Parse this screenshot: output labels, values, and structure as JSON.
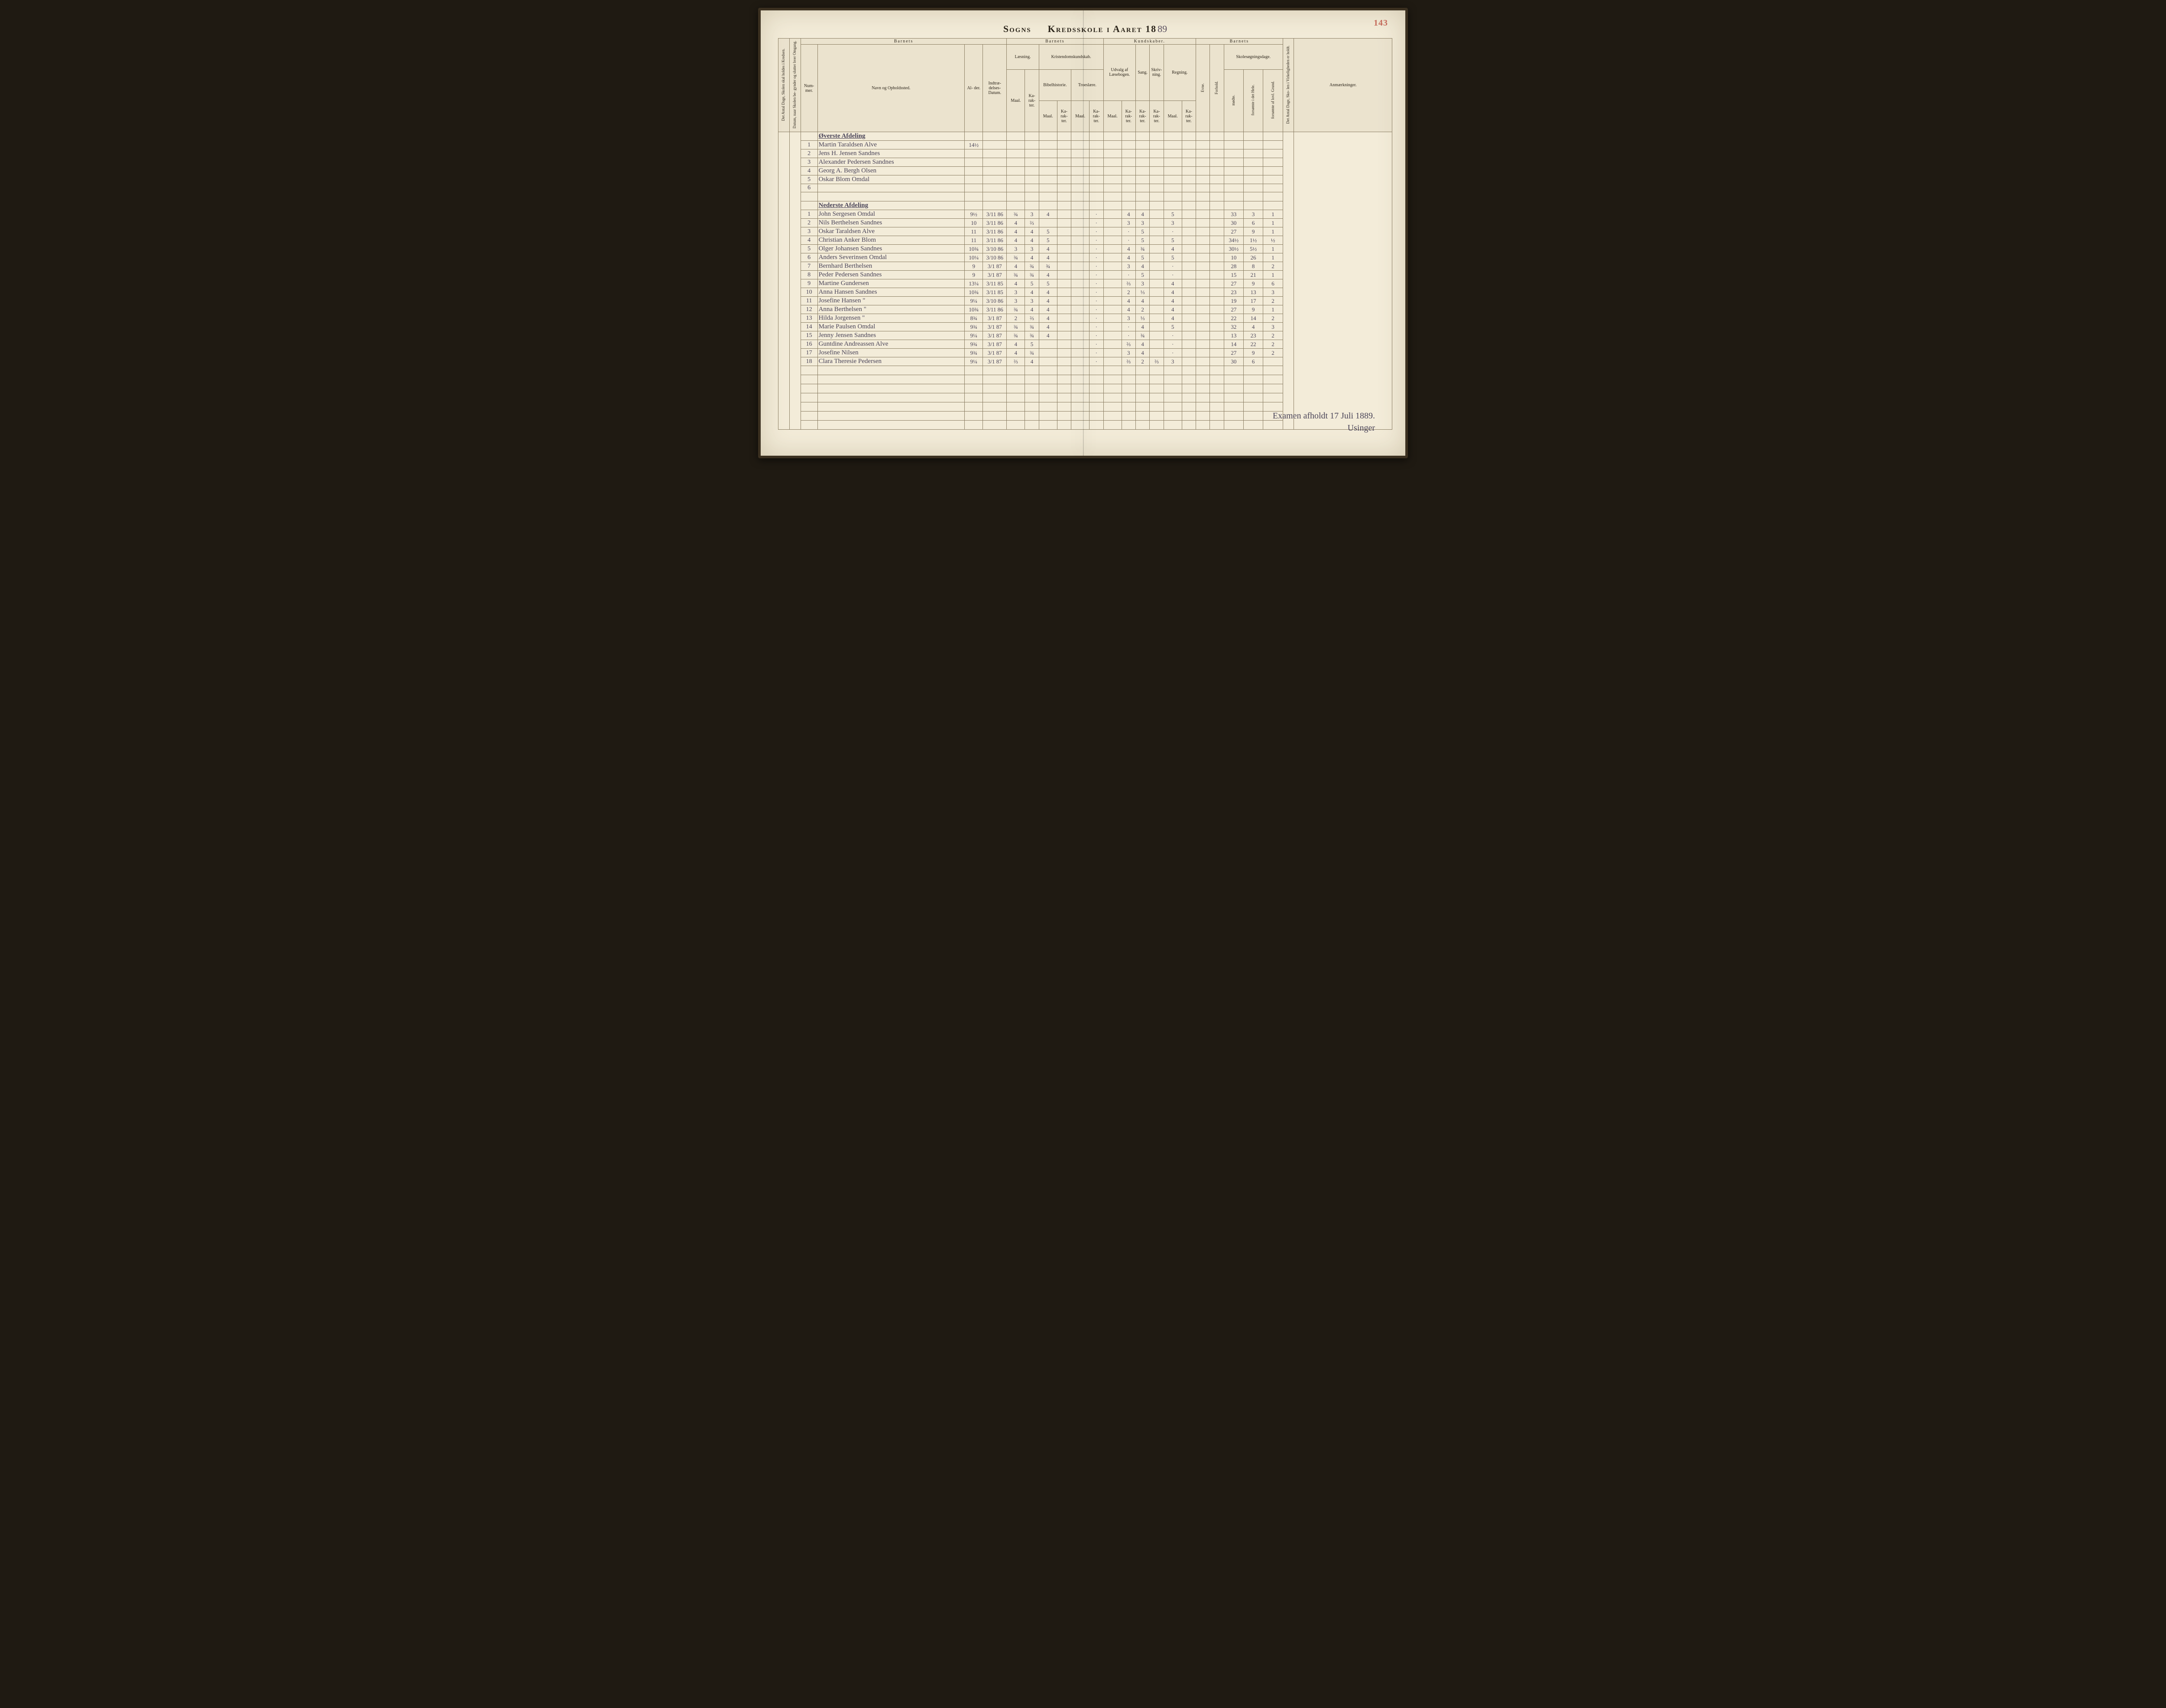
{
  "page": {
    "page_number": "143",
    "title_left": "Sogns",
    "title_right": "Kredsskole i Aaret 18",
    "year_suffix": "89"
  },
  "headers": {
    "barnets": "Barnets",
    "kundskaber": "Kundskaber.",
    "nummer": "Num-\nmer.",
    "navn": "Navn og Opholdssted.",
    "alder": "Al-\nder.",
    "indtr": "Indtræ-\ndelses-\nDatum.",
    "laesning": "Læsning.",
    "kristen": "Kristendomskundskab.",
    "bibel": "Bibelhistorie.",
    "troes": "Troeslære.",
    "udvalg": "Udvalg af\nLæsebogen.",
    "sang": "Sang.",
    "skriv": "Skriv-\nning.",
    "regning": "Regning.",
    "maal": "Maal.",
    "kar": "Ka-\nrak-\nter.",
    "evne": "Evne.",
    "forhold": "Forhold.",
    "skoledage": "Skolesøgningsdage.",
    "modte": "mødte.",
    "fors_hele": "forsømte i\ndet Hele.",
    "fors_lov": "forsømte af\nlovl. Grund.",
    "anm": "Anmærkninger.",
    "rot_a": "Det Antal Dage, Skolen\nskal holdes i Kredsen.",
    "rot_b": "Datum, naar Skolen be-\ngynder og slutter hver\nOmgang.",
    "rot_c": "Det Antal Dage, Sko-\nlen i Virkeligheden\ner holdt."
  },
  "sections": {
    "upper": "Øverste Afdeling",
    "lower": "Nederste Afdeling"
  },
  "upper_rows": [
    {
      "n": "1",
      "name": "Martin Taraldsen Alve",
      "age": "14½"
    },
    {
      "n": "2",
      "name": "Jens H. Jensen Sandnes"
    },
    {
      "n": "3",
      "name": "Alexander Pedersen Sandnes"
    },
    {
      "n": "4",
      "name": "Georg A. Bergh Olsen"
    },
    {
      "n": "5",
      "name": "Oskar Blom Omdal"
    },
    {
      "n": "6",
      "name": ""
    }
  ],
  "lower_rows": [
    {
      "n": "1",
      "name": "John Sergesen Omdal",
      "age": "9½",
      "date": "3/11 86",
      "l_m": "¾",
      "l_k": "3",
      "b_m": "4",
      "t_k": "·",
      "u_k": "4",
      "sa": "4",
      "sk": "",
      "r_m": "5",
      "m": "33",
      "fh": "3",
      "fl": "1"
    },
    {
      "n": "2",
      "name": "Nils Berthelsen Sandnes",
      "age": "10",
      "date": "3/11 86",
      "l_m": "4",
      "l_k": "⅔",
      "b_m": "",
      "t_k": "·",
      "u_k": "3",
      "sa": "3",
      "sk": "",
      "r_m": "3",
      "m": "30",
      "fh": "6",
      "fl": "1"
    },
    {
      "n": "3",
      "name": "Oskar Taraldsen Alve",
      "age": "11",
      "date": "3/11 86",
      "l_m": "4",
      "l_k": "4",
      "b_m": "5",
      "t_k": "·",
      "u_k": "·",
      "sa": "5",
      "sk": "",
      "r_m": "·",
      "m": "27",
      "fh": "9",
      "fl": "1"
    },
    {
      "n": "4",
      "name": "Christian Anker Blom",
      "age": "11",
      "date": "3/11 86",
      "l_m": "4",
      "l_k": "4",
      "b_m": "5",
      "t_k": "·",
      "u_k": "·",
      "sa": "5",
      "sk": "",
      "r_m": "5",
      "m": "34½",
      "fh": "1½",
      "fl": "½"
    },
    {
      "n": "5",
      "name": "Olger Johansen Sandnes",
      "age": "10¾",
      "date": "3/10 86",
      "l_m": "3",
      "l_k": "3",
      "b_m": "4",
      "t_k": "·",
      "u_k": "4",
      "sa": "¾",
      "sk": "",
      "r_m": "4",
      "m": "30½",
      "fh": "5½",
      "fl": "1"
    },
    {
      "n": "6",
      "name": "Anders Severinsen Omdal",
      "age": "10¼",
      "date": "3/10 86",
      "l_m": "¾",
      "l_k": "4",
      "b_m": "4",
      "t_k": "·",
      "u_k": "4",
      "sa": "5",
      "sk": "",
      "r_m": "5",
      "m": "10",
      "fh": "26",
      "fl": "1"
    },
    {
      "n": "7",
      "name": "Bernhard Berthelsen",
      "age": "9",
      "date": "3/1 87",
      "l_m": "4",
      "l_k": "¾",
      "b_m": "¾",
      "t_k": "·",
      "u_k": "3",
      "sa": "4",
      "sk": "",
      "r_m": "·",
      "m": "28",
      "fh": "8",
      "fl": "2"
    },
    {
      "n": "8",
      "name": "Peder Pedersen Sandnes",
      "age": "9",
      "date": "3/1 87",
      "l_m": "¾",
      "l_k": "¾",
      "b_m": "4",
      "t_k": "·",
      "u_k": "·",
      "sa": "5",
      "sk": "",
      "r_m": "·",
      "m": "15",
      "fh": "21",
      "fl": "1"
    },
    {
      "n": "9",
      "name": "Martine Gundersen",
      "age": "13¼",
      "date": "3/11 85",
      "l_m": "4",
      "l_k": "5",
      "b_m": "5",
      "t_k": "·",
      "u_k": "⅔",
      "sa": "3",
      "sk": "",
      "r_m": "4",
      "m": "27",
      "fh": "9",
      "fl": "6"
    },
    {
      "n": "10",
      "name": "Anna Hansen Sandnes",
      "age": "10¾",
      "date": "3/11 85",
      "l_m": "3",
      "l_k": "4",
      "b_m": "4",
      "t_k": "·",
      "u_k": "2",
      "sa": "⅓",
      "sk": "",
      "r_m": "4",
      "m": "23",
      "fh": "13",
      "fl": "3"
    },
    {
      "n": "11",
      "name": "Josefine Hansen     \"",
      "age": "9¼",
      "date": "3/10 86",
      "l_m": "3",
      "l_k": "3",
      "b_m": "4",
      "t_k": "·",
      "u_k": "4",
      "sa": "4",
      "sk": "",
      "r_m": "4",
      "m": "19",
      "fh": "17",
      "fl": "2"
    },
    {
      "n": "12",
      "name": "Anna Berthelsen     \"",
      "age": "10¾",
      "date": "3/11 86",
      "l_m": "¾",
      "l_k": "4",
      "b_m": "4",
      "t_k": "·",
      "u_k": "4",
      "sa": "2",
      "sk": "",
      "r_m": "4",
      "m": "27",
      "fh": "9",
      "fl": "1"
    },
    {
      "n": "13",
      "name": "Hilda Jorgensen     \"",
      "age": "8¾",
      "date": "3/1 87",
      "l_m": "2",
      "l_k": "⅔",
      "b_m": "4",
      "t_k": "·",
      "u_k": "3",
      "sa": "⅓",
      "sk": "",
      "r_m": "4",
      "m": "22",
      "fh": "14",
      "fl": "2"
    },
    {
      "n": "14",
      "name": "Marie Paulsen Omdal",
      "age": "9¾",
      "date": "3/1 87",
      "l_m": "¾",
      "l_k": "¾",
      "b_m": "4",
      "t_k": "·",
      "u_k": "·",
      "sa": "4",
      "sk": "",
      "r_m": "5",
      "m": "32",
      "fh": "4",
      "fl": "3"
    },
    {
      "n": "15",
      "name": "Jenny Jensen Sandnes",
      "age": "9¼",
      "date": "3/1 87",
      "l_m": "¾",
      "l_k": "¾",
      "b_m": "4",
      "t_k": "·",
      "u_k": "·",
      "sa": "¾",
      "sk": "",
      "r_m": "·",
      "m": "13",
      "fh": "23",
      "fl": "2"
    },
    {
      "n": "16",
      "name": "Guntdine Andreassen Alve",
      "age": "9¾",
      "date": "3/1 87",
      "l_m": "4",
      "l_k": "5",
      "b_m": "",
      "t_k": "·",
      "u_k": "⅔",
      "sa": "4",
      "sk": "",
      "r_m": "·",
      "m": "14",
      "fh": "22",
      "fl": "2"
    },
    {
      "n": "17",
      "name": "Josefine Nilsen",
      "age": "9¾",
      "date": "3/1 87",
      "l_m": "4",
      "l_k": "¾",
      "b_m": "",
      "t_k": "·",
      "u_k": "3",
      "sa": "4",
      "sk": "",
      "r_m": "·",
      "m": "27",
      "fh": "9",
      "fl": "2"
    },
    {
      "n": "18",
      "name": "Clara Theresie Pedersen",
      "age": "9¼",
      "date": "3/1 87",
      "l_m": "⅔",
      "l_k": "4",
      "b_m": "",
      "t_k": "·",
      "u_k": "⅔",
      "sa": "2",
      "sk": "⅔",
      "r_m": "3",
      "m": "30",
      "fh": "6",
      "fl": ""
    }
  ],
  "footer": {
    "line1": "Examen afholdt 17 Juli 1889.",
    "sign": "Usinger"
  }
}
